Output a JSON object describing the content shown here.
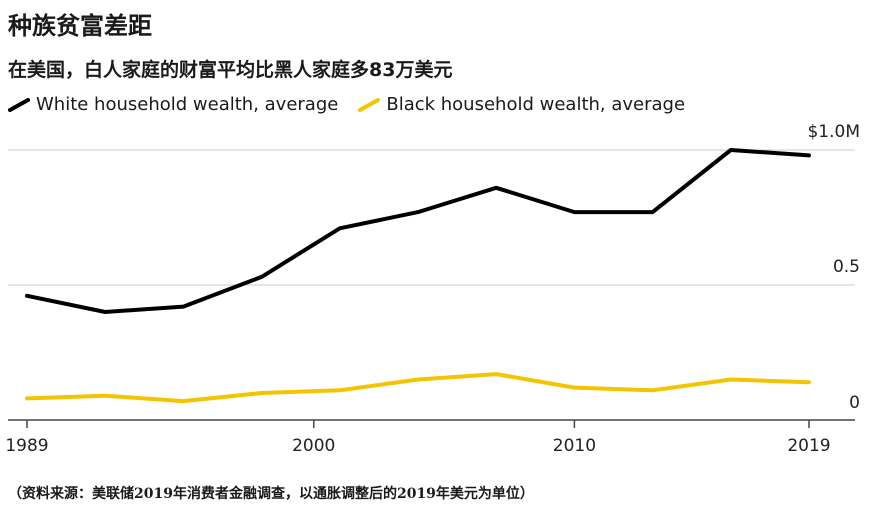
{
  "title": "种族贫富差距",
  "subtitle": "在美国，白人家庭的财富平均比黑人家庭多83万美元",
  "source": "（资料来源：美联储2019年消费者金融调查，以通胀调整后的2019年美元为单位）",
  "chart_data": {
    "type": "line",
    "x": [
      1989,
      1992,
      1995,
      1998,
      2001,
      2004,
      2007,
      2010,
      2013,
      2016,
      2019
    ],
    "series": [
      {
        "name": "White household wealth, average",
        "color": "#000000",
        "values": [
          0.46,
          0.4,
          0.42,
          0.53,
          0.71,
          0.77,
          0.86,
          0.77,
          0.77,
          1.0,
          0.98
        ]
      },
      {
        "name": "Black household wealth, average",
        "color": "#f5c400",
        "values": [
          0.08,
          0.09,
          0.07,
          0.1,
          0.11,
          0.15,
          0.17,
          0.12,
          0.11,
          0.15,
          0.14
        ]
      }
    ],
    "xticks": [
      {
        "value": 1989,
        "label": "1989"
      },
      {
        "value": 2000,
        "label": "2000"
      },
      {
        "value": 2010,
        "label": "2010"
      },
      {
        "value": 2019,
        "label": "2019"
      }
    ],
    "yticks": [
      {
        "value": 0,
        "label": "0"
      },
      {
        "value": 0.5,
        "label": "0.5"
      },
      {
        "value": 1.0,
        "label": "$1.0M"
      }
    ],
    "ylim": [
      0,
      1.0
    ],
    "xlim": [
      1989,
      2019
    ],
    "grid": true,
    "legend": "top-left"
  }
}
